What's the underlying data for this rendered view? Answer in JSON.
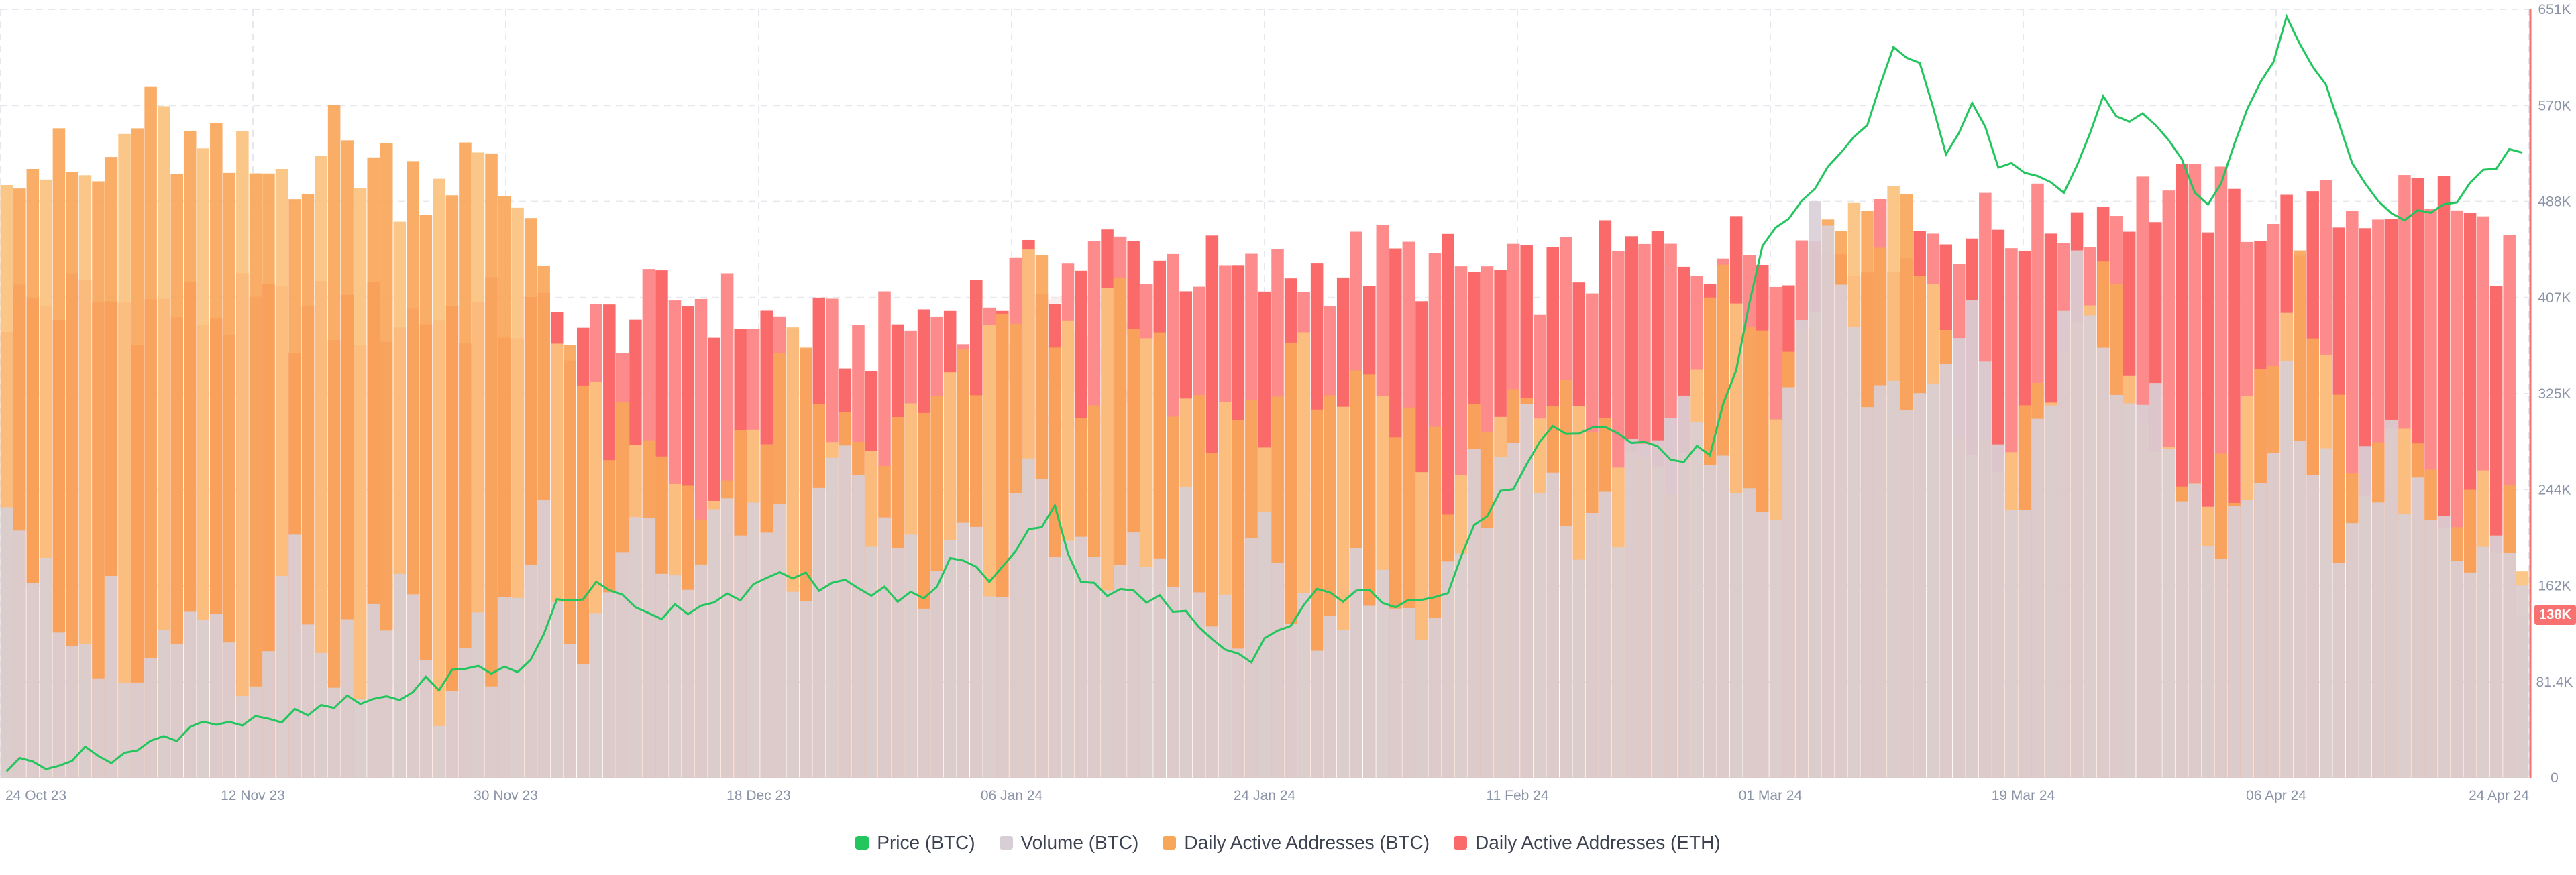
{
  "chart_data": {
    "type": "bar",
    "title": "",
    "colors": {
      "price": "#22c55e",
      "volume": "#d8cfd6",
      "btc_addresses": "#f8a65a",
      "btc_addresses_light": "#fbc27e",
      "eth_addresses": "#fa6a6a",
      "eth_addresses_light": "#fd8b8b",
      "axis_text": "#8a93a6",
      "grid": "#e6e8ee",
      "right_axis": "#f87171"
    },
    "x_range": [
      "2023-10-24",
      "2024-04-24"
    ],
    "x_ticks": [
      "24 Oct 23",
      "12 Nov 23",
      "30 Nov 23",
      "18 Dec 23",
      "06 Jan 24",
      "24 Jan 24",
      "11 Feb 24",
      "01 Mar 24",
      "19 Mar 24",
      "06 Apr 24",
      "24 Apr 24"
    ],
    "y_right": {
      "min": 0,
      "max": 651000,
      "ticks": [
        "0",
        "81.4K",
        "162K",
        "244K",
        "325K",
        "407K",
        "488K",
        "570K",
        "651K"
      ]
    },
    "last_value_badge": "138K",
    "series": [
      {
        "name": "Daily Active Addresses (ETH)",
        "role": "back-bars",
        "anchors": [
          [
            0,
            400
          ],
          [
            5,
            405
          ],
          [
            15,
            395
          ],
          [
            25,
            390
          ],
          [
            35,
            395
          ],
          [
            45,
            380
          ],
          [
            52,
            410
          ],
          [
            60,
            380
          ],
          [
            65,
            370
          ],
          [
            75,
            410
          ],
          [
            85,
            450
          ],
          [
            95,
            420
          ],
          [
            105,
            440
          ],
          [
            115,
            420
          ],
          [
            125,
            445
          ],
          [
            135,
            450
          ],
          [
            145,
            460
          ],
          [
            155,
            470
          ],
          [
            165,
            495
          ],
          [
            175,
            470
          ],
          [
            185,
            500
          ],
          [
            192,
            430
          ]
        ],
        "amplitude": 35
      },
      {
        "name": "Daily Active Addresses (BTC)",
        "role": "front-bars",
        "anchors": [
          [
            0,
            540
          ],
          [
            3,
            520
          ],
          [
            7,
            500
          ],
          [
            10,
            560
          ],
          [
            15,
            520
          ],
          [
            20,
            510
          ],
          [
            25,
            540
          ],
          [
            30,
            510
          ],
          [
            35,
            520
          ],
          [
            40,
            480
          ],
          [
            42,
            400
          ],
          [
            45,
            300
          ],
          [
            48,
            270
          ],
          [
            55,
            240
          ],
          [
            60,
            350
          ],
          [
            65,
            270
          ],
          [
            70,
            300
          ],
          [
            75,
            350
          ],
          [
            78,
            440
          ],
          [
            82,
            330
          ],
          [
            85,
            400
          ],
          [
            90,
            300
          ],
          [
            95,
            310
          ],
          [
            100,
            350
          ],
          [
            105,
            290
          ],
          [
            110,
            260
          ],
          [
            116,
            350
          ],
          [
            121,
            290
          ],
          [
            127,
            250
          ],
          [
            131,
            470
          ],
          [
            135,
            330
          ],
          [
            140,
            480
          ],
          [
            145,
            490
          ],
          [
            150,
            270
          ],
          [
            155,
            300
          ],
          [
            160,
            420
          ],
          [
            165,
            250
          ],
          [
            170,
            260
          ],
          [
            175,
            420
          ],
          [
            180,
            250
          ],
          [
            185,
            270
          ],
          [
            187,
            200
          ],
          [
            188,
            260
          ],
          [
            190,
            230
          ],
          [
            192,
            210
          ]
        ],
        "amplitude": 40
      },
      {
        "name": "Volume (BTC)",
        "role": "base-bars",
        "anchors": [
          [
            0,
            250
          ],
          [
            3,
            150
          ],
          [
            5,
            75
          ],
          [
            8,
            140
          ],
          [
            11,
            80
          ],
          [
            14,
            180
          ],
          [
            18,
            100
          ],
          [
            22,
            180
          ],
          [
            26,
            90
          ],
          [
            30,
            150
          ],
          [
            33,
            75
          ],
          [
            37,
            110
          ],
          [
            41,
            220
          ],
          [
            44,
            120
          ],
          [
            48,
            230
          ],
          [
            52,
            150
          ],
          [
            56,
            240
          ],
          [
            60,
            170
          ],
          [
            64,
            250
          ],
          [
            68,
            170
          ],
          [
            72,
            200
          ],
          [
            76,
            150
          ],
          [
            78,
            280
          ],
          [
            82,
            180
          ],
          [
            86,
            170
          ],
          [
            90,
            210
          ],
          [
            92,
            120
          ],
          [
            96,
            180
          ],
          [
            100,
            150
          ],
          [
            104,
            160
          ],
          [
            108,
            130
          ],
          [
            112,
            240
          ],
          [
            116,
            300
          ],
          [
            120,
            200
          ],
          [
            124,
            250
          ],
          [
            128,
            300
          ],
          [
            132,
            210
          ],
          [
            135,
            230
          ],
          [
            138,
            460
          ],
          [
            142,
            330
          ],
          [
            146,
            290
          ],
          [
            150,
            360
          ],
          [
            154,
            240
          ],
          [
            158,
            420
          ],
          [
            162,
            330
          ],
          [
            166,
            250
          ],
          [
            170,
            200
          ],
          [
            174,
            320
          ],
          [
            178,
            220
          ],
          [
            182,
            290
          ],
          [
            186,
            200
          ],
          [
            189,
            180
          ],
          [
            192,
            150
          ]
        ],
        "amplitude": 45
      },
      {
        "name": "Price (BTC)",
        "role": "line",
        "anchors": [
          [
            0,
            10
          ],
          [
            5,
            18
          ],
          [
            10,
            22
          ],
          [
            15,
            50
          ],
          [
            20,
            45
          ],
          [
            25,
            60
          ],
          [
            30,
            70
          ],
          [
            35,
            90
          ],
          [
            40,
            95
          ],
          [
            42,
            150
          ],
          [
            45,
            160
          ],
          [
            50,
            140
          ],
          [
            55,
            155
          ],
          [
            60,
            170
          ],
          [
            65,
            160
          ],
          [
            70,
            150
          ],
          [
            72,
            185
          ],
          [
            75,
            170
          ],
          [
            78,
            210
          ],
          [
            80,
            225
          ],
          [
            82,
            170
          ],
          [
            85,
            155
          ],
          [
            88,
            150
          ],
          [
            92,
            120
          ],
          [
            95,
            105
          ],
          [
            100,
            155
          ],
          [
            103,
            155
          ],
          [
            107,
            150
          ],
          [
            110,
            150
          ],
          [
            112,
            210
          ],
          [
            115,
            250
          ],
          [
            118,
            300
          ],
          [
            121,
            290
          ],
          [
            125,
            290
          ],
          [
            128,
            270
          ],
          [
            130,
            280
          ],
          [
            132,
            350
          ],
          [
            134,
            450
          ],
          [
            136,
            470
          ],
          [
            138,
            500
          ],
          [
            140,
            530
          ],
          [
            142,
            560
          ],
          [
            144,
            620
          ],
          [
            146,
            600
          ],
          [
            148,
            530
          ],
          [
            150,
            570
          ],
          [
            152,
            520
          ],
          [
            155,
            510
          ],
          [
            157,
            500
          ],
          [
            160,
            570
          ],
          [
            163,
            560
          ],
          [
            166,
            520
          ],
          [
            168,
            480
          ],
          [
            171,
            560
          ],
          [
            174,
            640
          ],
          [
            177,
            580
          ],
          [
            180,
            500
          ],
          [
            183,
            470
          ],
          [
            186,
            480
          ],
          [
            189,
            520
          ],
          [
            192,
            530
          ]
        ],
        "amplitude": 8
      }
    ],
    "legend": [
      {
        "label": "Price (BTC)",
        "color": "#22c55e"
      },
      {
        "label": "Volume (BTC)",
        "color": "#d8cfd6"
      },
      {
        "label": "Daily Active Addresses (BTC)",
        "color": "#f8a65a"
      },
      {
        "label": "Daily Active Addresses (ETH)",
        "color": "#fa6a6a"
      }
    ]
  }
}
